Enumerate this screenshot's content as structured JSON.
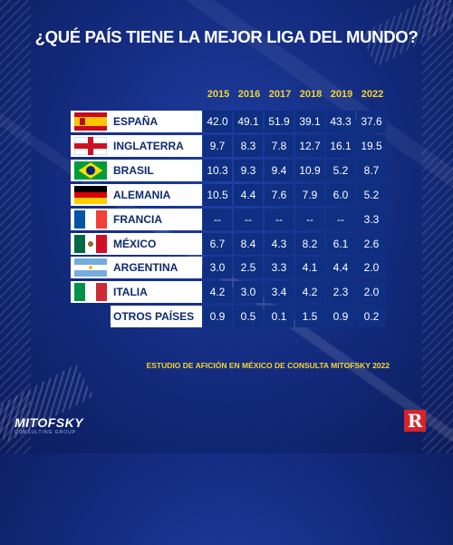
{
  "title": "¿QUÉ PAÍS TIENE LA MEJOR LIGA DEL MUNDO?",
  "footer_note": "ESTUDIO DE AFICIÓN EN MÉXICO DE CONSULTA MITOFSKY 2022",
  "logos": {
    "mitofsky": "MITOFSKY",
    "mitofsky_sub": "CONSULTING GROUP",
    "record": "R"
  },
  "colors": {
    "background": "#132a7c",
    "cell": "#0e2f82",
    "year": "#f5d531",
    "label": "#0e2a6e",
    "record": "#d8232a"
  },
  "chart_data": {
    "type": "table",
    "columns": [
      "2015",
      "2016",
      "2017",
      "2018",
      "2019",
      "2022"
    ],
    "rows": [
      {
        "country": "ESPAÑA",
        "flag": "flag-spain-icon",
        "values": [
          "42.0",
          "49.1",
          "51.9",
          "39.1",
          "43.3",
          "37.6"
        ]
      },
      {
        "country": "INGLATERRA",
        "flag": "flag-england-icon",
        "values": [
          "9.7",
          "8.3",
          "7.8",
          "12.7",
          "16.1",
          "19.5"
        ]
      },
      {
        "country": "BRASIL",
        "flag": "flag-brazil-icon",
        "values": [
          "10.3",
          "9.3",
          "9.4",
          "10.9",
          "5.2",
          "8.7"
        ]
      },
      {
        "country": "ALEMANIA",
        "flag": "flag-germany-icon",
        "values": [
          "10.5",
          "4.4",
          "7.6",
          "7.9",
          "6.0",
          "5.2"
        ]
      },
      {
        "country": "FRANCIA",
        "flag": "flag-france-icon",
        "values": [
          "--",
          "--",
          "--",
          "--",
          "--",
          "3.3"
        ]
      },
      {
        "country": "MÉXICO",
        "flag": "flag-mexico-icon",
        "values": [
          "6.7",
          "8.4",
          "4.3",
          "8.2",
          "6.1",
          "2.6"
        ]
      },
      {
        "country": "ARGENTINA",
        "flag": "flag-argentina-icon",
        "values": [
          "3.0",
          "2.5",
          "3.3",
          "4.1",
          "4.4",
          "2.0"
        ]
      },
      {
        "country": "ITALIA",
        "flag": "flag-italy-icon",
        "values": [
          "4.2",
          "3.0",
          "3.4",
          "4.2",
          "2.3",
          "2.0"
        ]
      },
      {
        "country": "OTROS PAÍSES",
        "flag": "",
        "values": [
          "0.9",
          "0.5",
          "0.1",
          "1.5",
          "0.9",
          "0.2"
        ]
      }
    ]
  }
}
